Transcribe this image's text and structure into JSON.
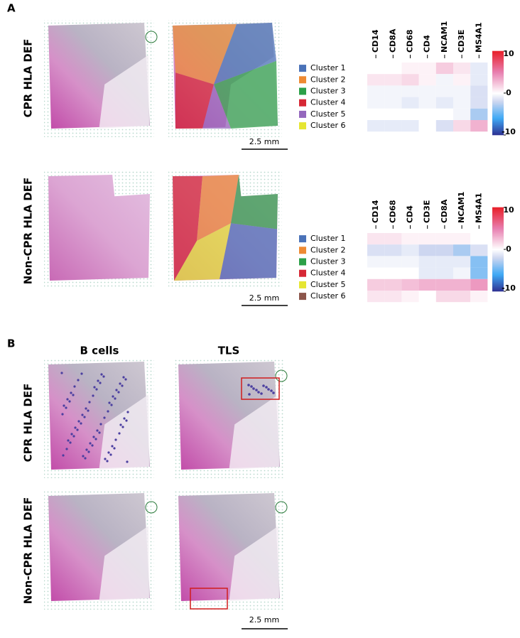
{
  "panel_a": {
    "label": "A",
    "rows": [
      {
        "row_label": "CPR HLA DEF",
        "scale_bar": "2.5 mm",
        "genes": [
          "CD14",
          "CD8A",
          "CD68",
          "CD4",
          "NCAM1",
          "CD3E",
          "MS4A1"
        ],
        "clusters": [
          "Cluster 1",
          "Cluster 2",
          "Cluster 3",
          "Cluster 4",
          "Cluster 5",
          "Cluster 6"
        ],
        "cluster_colors": [
          "#4a72b8",
          "#ee8a33",
          "#2ca048",
          "#d62835",
          "#9467bd",
          "#e6e632"
        ],
        "values": [
          [
            0,
            0,
            0.5,
            0.5,
            2,
            1,
            -1
          ],
          [
            1,
            1,
            1.5,
            0.5,
            -0.5,
            0.5,
            -1
          ],
          [
            -0.5,
            -0.5,
            -0.5,
            -0.5,
            -0.5,
            -0.5,
            -1.5
          ],
          [
            -0.5,
            -0.5,
            -1,
            -0.5,
            -1,
            -0.5,
            -1.5
          ],
          [
            0,
            0,
            0,
            0,
            0,
            -0.5,
            -3
          ],
          [
            -1,
            -1,
            -1,
            0,
            -1.5,
            1.5,
            3
          ]
        ],
        "colorbar_lim": [
          -10,
          10
        ],
        "colorbar_ticks": [
          10,
          0,
          -10
        ]
      },
      {
        "row_label": "Non-CPR HLA DEF",
        "scale_bar": "2.5 mm",
        "genes": [
          "CD14",
          "CD68",
          "CD4",
          "CD3E",
          "CD8A",
          "NCAM1",
          "MS4A1"
        ],
        "clusters": [
          "Cluster 1",
          "Cluster 2",
          "Cluster 3",
          "Cluster 4",
          "Cluster 5",
          "Cluster 6"
        ],
        "cluster_colors": [
          "#4a72b8",
          "#ee8a33",
          "#2ca048",
          "#d62835",
          "#e6e632",
          "#8c564b"
        ],
        "values": [
          [
            1,
            1,
            0.5,
            0.5,
            0.5,
            0.5,
            0
          ],
          [
            -1.5,
            -1.5,
            -1,
            -2,
            -2,
            -3,
            -1.5
          ],
          [
            -0.5,
            -0.5,
            -0.5,
            -1,
            -1,
            -1,
            -4
          ],
          [
            0,
            0,
            0,
            -1,
            -1,
            -0.5,
            -4
          ],
          [
            2,
            2,
            2.5,
            3,
            3,
            3,
            4
          ],
          [
            1,
            1,
            0.5,
            0,
            1.5,
            1.5,
            0.5
          ]
        ],
        "colorbar_lim": [
          -10,
          10
        ],
        "colorbar_ticks": [
          10,
          0,
          -10
        ]
      }
    ]
  },
  "panel_b": {
    "label": "B",
    "columns": [
      "B cells",
      "TLS"
    ],
    "rows": [
      "CPR HLA DEF",
      "Non-CPR HLA DEF"
    ],
    "scale_bar": "2.5 mm"
  }
}
